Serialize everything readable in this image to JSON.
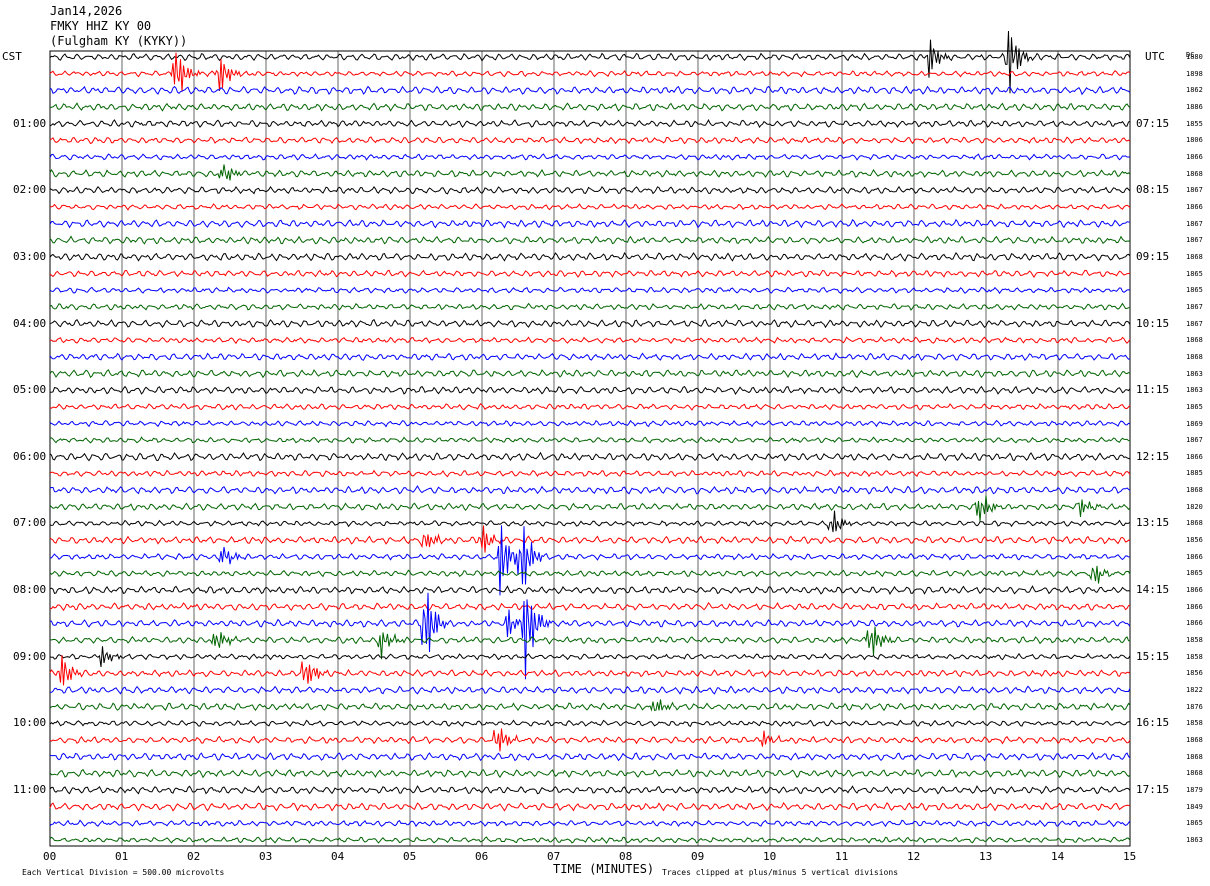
{
  "header": {
    "date": "Jan14,2026",
    "station": "FMKY HHZ KY 00",
    "location": "(Fulgham KY (KYKY))"
  },
  "tz_left": "CST",
  "tz_right": "UTC",
  "dc_header": "DC",
  "footer": {
    "scale": "Each Vertical Division =  500.00 microvolts",
    "xlabel": "TIME (MINUTES)",
    "clip": "Traces clipped at plus/minus 5 vertical divisions"
  },
  "colors": [
    "#000000",
    "#ff0000",
    "#0000ff",
    "#006400"
  ],
  "chart_data": {
    "type": "line",
    "title": "",
    "xlabel": "TIME (MINUTES)",
    "ylabel": "",
    "x_range": [
      0,
      15
    ],
    "x_ticks": [
      "00",
      "01",
      "02",
      "03",
      "04",
      "05",
      "06",
      "07",
      "08",
      "09",
      "10",
      "11",
      "12",
      "13",
      "14",
      "15"
    ],
    "traces_count": 48,
    "left_labels": [
      "01:00",
      "02:00",
      "03:00",
      "04:00",
      "05:00",
      "06:00",
      "07:00",
      "08:00",
      "09:00",
      "10:00",
      "11:00"
    ],
    "right_labels": [
      "07:15",
      "08:15",
      "09:15",
      "10:15",
      "11:15",
      "12:15",
      "13:15",
      "14:15",
      "15:15",
      "16:15",
      "17:15"
    ],
    "dc_offsets": [
      "1880",
      "1898",
      "1862",
      "1886",
      "1855",
      "1806",
      "1866",
      "1868",
      "1867",
      "1866",
      "1867",
      "1867",
      "1868",
      "1865",
      "1865",
      "1867",
      "1867",
      "1868",
      "1868",
      "1863",
      "1863",
      "1865",
      "1869",
      "1867",
      "1866",
      "1885",
      "1868",
      "1820",
      "1868",
      "1856",
      "1866",
      "1865",
      "1866",
      "1866",
      "1866",
      "1858",
      "1858",
      "1856",
      "1822",
      "1876",
      "1858",
      "1868",
      "1868",
      "1868",
      "1879",
      "1849",
      "1865",
      "1863"
    ],
    "events": [
      {
        "trace": 1,
        "minute": 1.75,
        "amp": 3.0
      },
      {
        "trace": 1,
        "minute": 2.35,
        "amp": 2.0
      },
      {
        "trace": 0,
        "minute": 13.3,
        "amp": 4.0
      },
      {
        "trace": 0,
        "minute": 12.2,
        "amp": 2.0
      },
      {
        "trace": 7,
        "minute": 2.4,
        "amp": 1.2
      },
      {
        "trace": 27,
        "minute": 12.9,
        "amp": 2.0
      },
      {
        "trace": 27,
        "minute": 14.3,
        "amp": 1.4
      },
      {
        "trace": 28,
        "minute": 10.85,
        "amp": 1.5
      },
      {
        "trace": 29,
        "minute": 5.2,
        "amp": 1.4
      },
      {
        "trace": 29,
        "minute": 6.0,
        "amp": 1.6
      },
      {
        "trace": 30,
        "minute": 2.4,
        "amp": 1.4
      },
      {
        "trace": 30,
        "minute": 6.25,
        "amp": 4.0
      },
      {
        "trace": 30,
        "minute": 6.55,
        "amp": 4.0
      },
      {
        "trace": 31,
        "minute": 14.5,
        "amp": 1.4
      },
      {
        "trace": 34,
        "minute": 5.2,
        "amp": 5.0
      },
      {
        "trace": 34,
        "minute": 6.6,
        "amp": 5.0
      },
      {
        "trace": 34,
        "minute": 6.35,
        "amp": 1.5
      },
      {
        "trace": 35,
        "minute": 2.3,
        "amp": 1.5
      },
      {
        "trace": 35,
        "minute": 4.6,
        "amp": 1.8
      },
      {
        "trace": 35,
        "minute": 11.4,
        "amp": 2.5
      },
      {
        "trace": 36,
        "minute": 0.7,
        "amp": 1.2
      },
      {
        "trace": 37,
        "minute": 0.15,
        "amp": 2.5
      },
      {
        "trace": 37,
        "minute": 3.55,
        "amp": 2.0
      },
      {
        "trace": 39,
        "minute": 8.4,
        "amp": 1.2
      },
      {
        "trace": 41,
        "minute": 6.2,
        "amp": 2.0
      },
      {
        "trace": 41,
        "minute": 9.9,
        "amp": 1.0
      }
    ]
  }
}
